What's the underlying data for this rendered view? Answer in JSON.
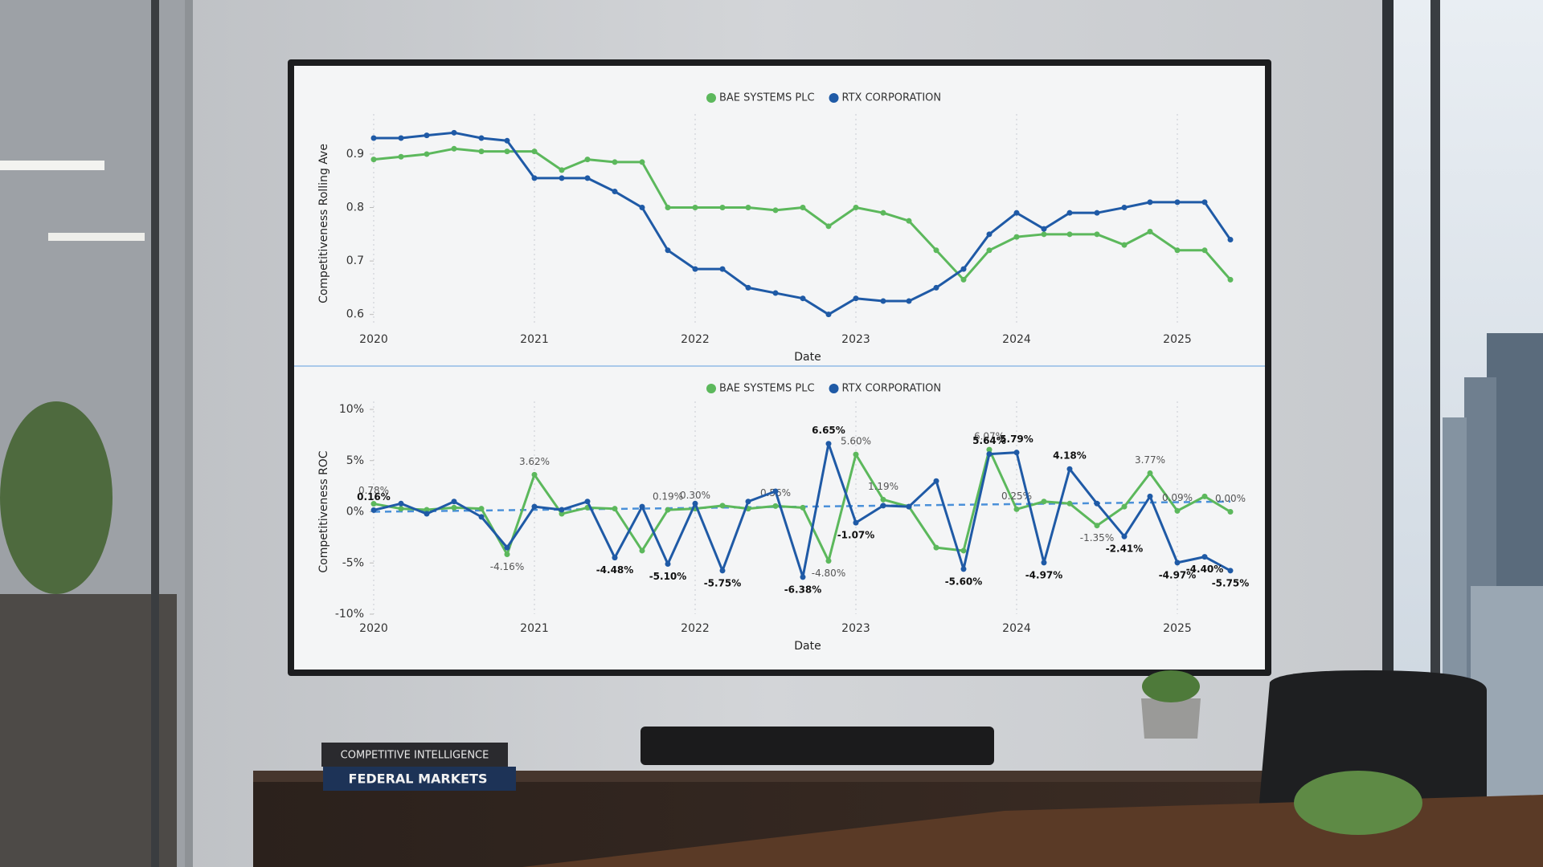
{
  "chart_data": [
    {
      "type": "line",
      "y_label": "Competitiveness Rolling Ave",
      "x_label": "Date",
      "x": [
        2020,
        2020.17,
        2020.33,
        2020.5,
        2020.67,
        2020.83,
        2021,
        2021.17,
        2021.33,
        2021.5,
        2021.67,
        2021.83,
        2022,
        2022.17,
        2022.33,
        2022.5,
        2022.67,
        2022.83,
        2023,
        2023.17,
        2023.33,
        2023.5,
        2023.67,
        2023.83,
        2024,
        2024.17,
        2024.33,
        2024.5,
        2024.67,
        2024.83,
        2025,
        2025.17,
        2025.33
      ],
      "series": [
        {
          "name": "BAE SYSTEMS PLC",
          "color": "#5cb85c",
          "values": [
            0.89,
            0.895,
            0.9,
            0.91,
            0.905,
            0.905,
            0.905,
            0.87,
            0.89,
            0.885,
            0.885,
            0.8,
            0.8,
            0.8,
            0.8,
            0.795,
            0.8,
            0.765,
            0.8,
            0.79,
            0.775,
            0.72,
            0.665,
            0.72,
            0.745,
            0.75,
            0.75,
            0.75,
            0.73,
            0.755,
            0.72,
            0.72,
            0.665
          ]
        },
        {
          "name": "RTX CORPORATION",
          "color": "#1f5aa6",
          "values": [
            0.93,
            0.93,
            0.935,
            0.94,
            0.93,
            0.925,
            0.855,
            0.855,
            0.855,
            0.83,
            0.8,
            0.72,
            0.685,
            0.685,
            0.65,
            0.64,
            0.63,
            0.6,
            0.63,
            0.625,
            0.625,
            0.65,
            0.685,
            0.75,
            0.79,
            0.76,
            0.79,
            0.79,
            0.8,
            0.81,
            0.81,
            0.81,
            0.74
          ]
        }
      ],
      "xlim": [
        2020,
        2025.4
      ],
      "xticks": [
        2020,
        2021,
        2022,
        2023,
        2024,
        2025
      ],
      "ylim": [
        0.58,
        0.96
      ],
      "yticks": [
        0.6,
        0.7,
        0.8,
        0.9
      ],
      "grid": true,
      "legend": "top"
    },
    {
      "type": "line",
      "y_label": "Competitiveness ROC",
      "x_label": "Date",
      "x": [
        2020,
        2020.17,
        2020.33,
        2020.5,
        2020.67,
        2020.83,
        2021,
        2021.17,
        2021.33,
        2021.5,
        2021.67,
        2021.83,
        2022,
        2022.17,
        2022.33,
        2022.5,
        2022.67,
        2022.83,
        2023,
        2023.17,
        2023.33,
        2023.5,
        2023.67,
        2023.83,
        2024,
        2024.17,
        2024.33,
        2024.5,
        2024.67,
        2024.83,
        2025,
        2025.17,
        2025.33
      ],
      "series": [
        {
          "name": "BAE SYSTEMS PLC",
          "color": "#5cb85c",
          "values": [
            0.78,
            0.3,
            0.2,
            0.4,
            0.3,
            -4.16,
            3.62,
            -0.2,
            0.4,
            0.3,
            -3.8,
            0.19,
            0.3,
            0.6,
            0.3,
            0.56,
            0.4,
            -4.8,
            5.6,
            1.19,
            0.5,
            -3.5,
            -3.8,
            6.07,
            0.25,
            1.0,
            0.8,
            -1.35,
            0.5,
            3.77,
            0.09,
            1.5,
            0.0
          ],
          "value_labels": [
            "0.78%",
            null,
            null,
            null,
            null,
            "-4.16%",
            "3.62%",
            null,
            null,
            null,
            null,
            "0.19%",
            "0.30%",
            null,
            null,
            "0.56%",
            null,
            "-4.80%",
            "5.60%",
            "1.19%",
            null,
            null,
            null,
            "6.07%",
            "0.25%",
            null,
            null,
            "-1.35%",
            null,
            "3.77%",
            "0.09%",
            null,
            "0.00%"
          ]
        },
        {
          "name": "RTX CORPORATION",
          "color": "#1f5aa6",
          "values": [
            0.16,
            0.8,
            -0.2,
            1.0,
            -0.5,
            -3.5,
            0.5,
            0.2,
            1.0,
            -4.48,
            0.5,
            -5.1,
            0.8,
            -5.75,
            1.0,
            2.0,
            -6.38,
            6.65,
            -1.07,
            0.6,
            0.5,
            3.0,
            -5.6,
            5.64,
            5.79,
            -4.97,
            4.18,
            0.8,
            -2.41,
            1.5,
            -4.97,
            -4.4,
            -5.75
          ],
          "value_labels": [
            "0.16%",
            null,
            null,
            null,
            null,
            null,
            null,
            null,
            null,
            "-4.48%",
            null,
            "-5.10%",
            null,
            "-5.75%",
            null,
            null,
            "-6.38%",
            "6.65%",
            "-1.07%",
            null,
            null,
            null,
            "-5.60%",
            "5.64%",
            "5.79%",
            "-4.97%",
            "4.18%",
            null,
            "-2.41%",
            null,
            "-4.97%",
            "-4.40%",
            "-5.75%"
          ]
        }
      ],
      "trend": {
        "x": [
          2020,
          2025.33
        ],
        "values": [
          0,
          1
        ],
        "color": "#4a90d9"
      },
      "xlim": [
        2020,
        2025.4
      ],
      "xticks": [
        2020,
        2021,
        2022,
        2023,
        2024,
        2025
      ],
      "ylim": [
        -10,
        10
      ],
      "yticks": [
        {
          "value": -10,
          "label": "-10%"
        },
        {
          "value": -5,
          "label": "-5%"
        },
        {
          "value": 0,
          "label": "0%"
        },
        {
          "value": 5,
          "label": "5%"
        },
        {
          "value": 10,
          "label": "10%"
        }
      ],
      "grid": true,
      "legend": "top"
    }
  ],
  "scene": {
    "books": [
      "COMPETITIVE INTELLIGENCE",
      "FEDERAL MARKETS"
    ]
  }
}
